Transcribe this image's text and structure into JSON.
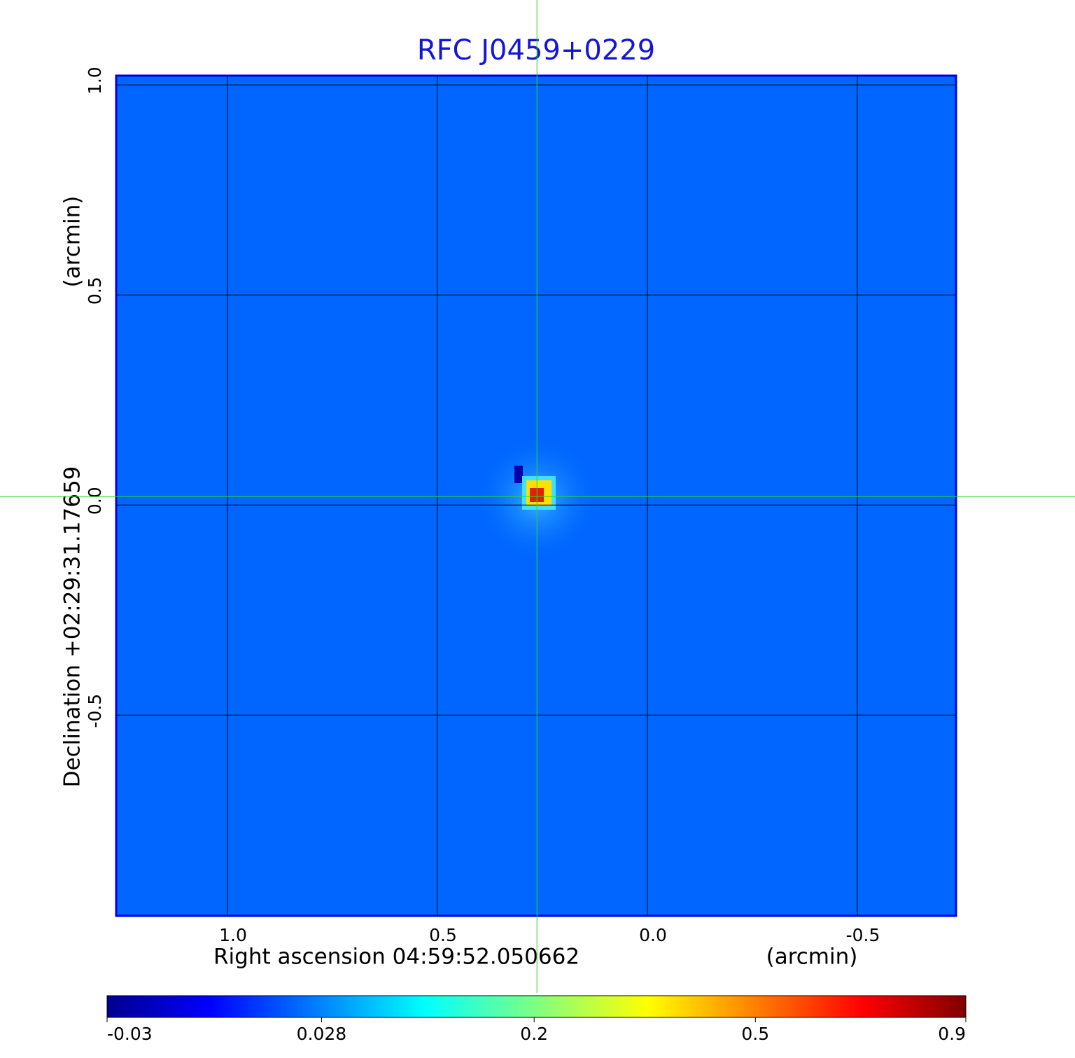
{
  "chart_data": {
    "type": "image",
    "title": "RFC J0459+0229",
    "xlabel": "Right ascension  04:59:52.050662",
    "xunit": "(arcmin)",
    "ylabel": "Declination  +02:29:31.17659",
    "yunit": "(arcmin)",
    "xlim": [
      1.265,
      -0.735
    ],
    "ylim": [
      -0.978,
      1.022
    ],
    "xticks": [
      {
        "value": 1,
        "label": "1.0"
      },
      0.5,
      {
        "value": 0,
        "label": "0.0"
      },
      -0.5
    ],
    "yticks": [
      {
        "value": 1,
        "label": "1.0"
      },
      0.5,
      {
        "value": 0,
        "label": "0.0"
      },
      -0.5
    ],
    "grid": true,
    "crosshair": [
      0.263,
      0.02
    ],
    "colorbar_scale": "sqrt",
    "clim": [
      -0.03,
      0.9
    ],
    "cticks": [
      -0.03,
      0.028,
      0.2,
      0.5,
      0.9
    ]
  }
}
